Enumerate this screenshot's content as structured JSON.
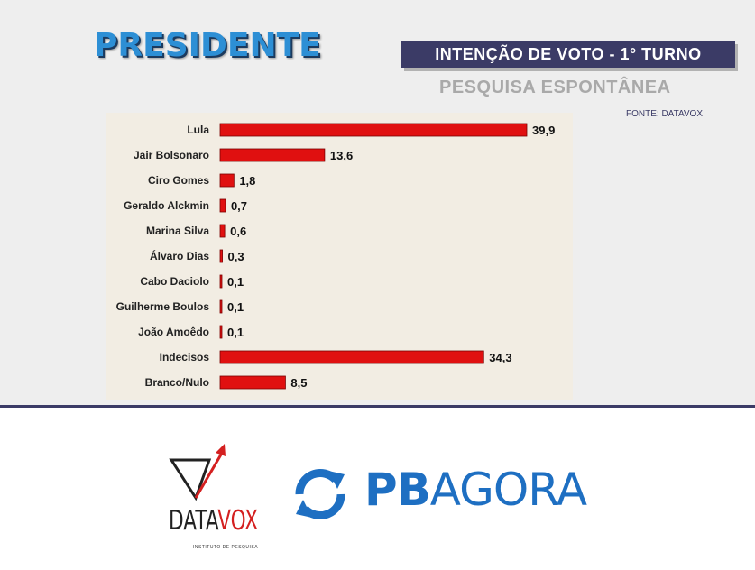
{
  "header": {
    "title": "PRESIDENTE",
    "banner": "INTENÇÃO DE VOTO - 1° TURNO",
    "subtitle": "PESQUISA ESPONTÂNEA",
    "source": "FONTE: DATAVOX"
  },
  "colors": {
    "bar": "#e01010",
    "title": "#2d8fd5",
    "banner_bg": "#3b3b66",
    "chart_bg": "#f2ede3"
  },
  "chart_data": {
    "type": "bar",
    "orientation": "horizontal",
    "categories": [
      "Lula",
      "Jair Bolsonaro",
      "Ciro Gomes",
      "Geraldo Alckmin",
      "Marina Silva",
      "Álvaro Dias",
      "Cabo Daciolo",
      "Guilherme Boulos",
      "João Amoêdo",
      "Indecisos",
      "Branco/Nulo"
    ],
    "values": [
      39.9,
      13.6,
      1.8,
      0.7,
      0.6,
      0.3,
      0.1,
      0.1,
      0.1,
      34.3,
      8.5
    ],
    "value_labels": [
      "39,9",
      "13,6",
      "1,8",
      "0,7",
      "0,6",
      "0,3",
      "0,1",
      "0,1",
      "0,1",
      "34,3",
      "8,5"
    ],
    "xlim": [
      0,
      39.9
    ],
    "grid": false,
    "legend": "none"
  },
  "logos": {
    "datavox": {
      "name_a": "DATA",
      "name_b": "VOX",
      "tagline": "INSTITUTO DE PESQUISA"
    },
    "pbagora": {
      "name_a": "PB",
      "name_b": "AGORA"
    }
  }
}
